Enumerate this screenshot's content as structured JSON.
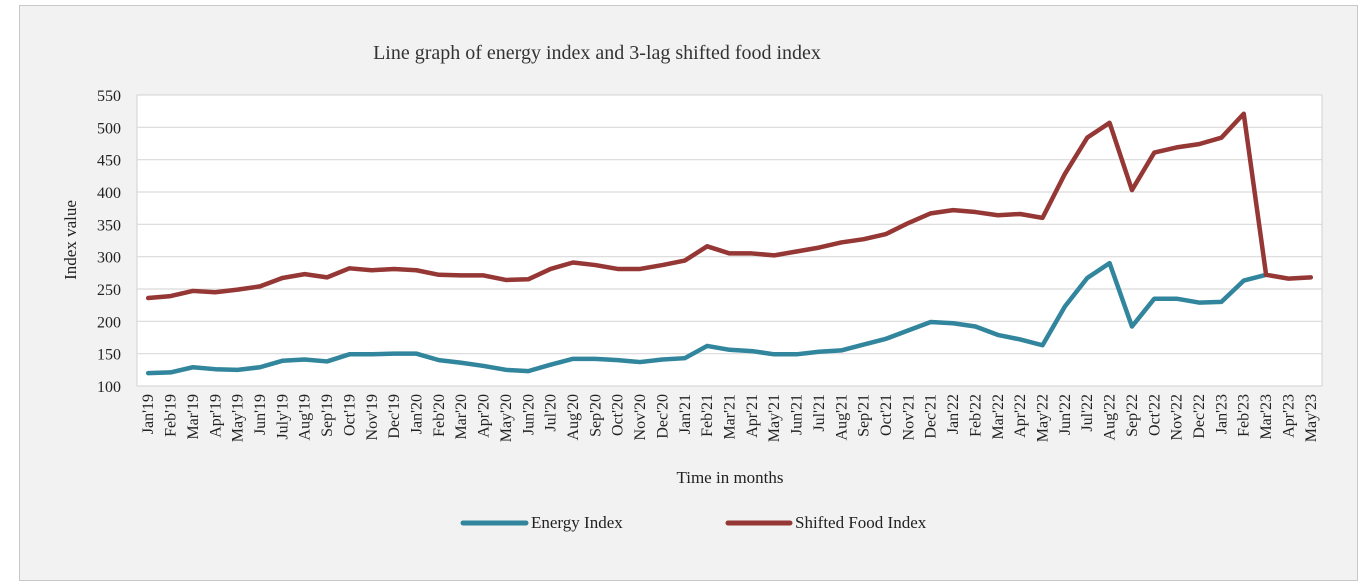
{
  "chart_data": {
    "type": "line",
    "title": "Line graph of energy index and 3-lag shifted food index",
    "xlabel": "Time in months",
    "ylabel": "Index value",
    "ylim": [
      100,
      550
    ],
    "yticks": [
      100,
      150,
      200,
      250,
      300,
      350,
      400,
      450,
      500,
      550
    ],
    "grid": true,
    "legend_position": "bottom",
    "categories": [
      "Jan'19",
      "Feb'19",
      "Mar'19",
      "Apr'19",
      "May'19",
      "Jun'19",
      "July'19",
      "Aug'19",
      "Sep'19",
      "Oct'19",
      "Nov'19",
      "Dec'19",
      "Jan'20",
      "Feb'20",
      "Mar'20",
      "Apr'20",
      "May'20",
      "Jun'20",
      "Jul'20",
      "Aug'20",
      "Sep'20",
      "Oct'20",
      "Nov'20",
      "Dec'20",
      "Jan'21",
      "Feb'21",
      "Mar'21",
      "Apr'21",
      "May'21",
      "Jun'21",
      "Jul'21",
      "Aug'21",
      "Sep'21",
      "Oct'21",
      "Nov'21",
      "Dec'21",
      "Jan'22",
      "Feb'22",
      "Mar'22",
      "Apr'22",
      "May'22",
      "Jun'22",
      "Jul'22",
      "Aug'22",
      "Sep'22",
      "Oct'22",
      "Nov'22",
      "Dec'22",
      "Jan'23",
      "Feb'23",
      "Mar'23",
      "Apr'23",
      "May'23"
    ],
    "series": [
      {
        "name": "Energy Index",
        "color": "#31859c",
        "values": [
          120,
          121,
          129,
          126,
          125,
          129,
          139,
          141,
          138,
          149,
          149,
          150,
          150,
          140,
          136,
          131,
          125,
          123,
          133,
          142,
          142,
          140,
          137,
          141,
          143,
          162,
          156,
          154,
          149,
          149,
          153,
          155,
          164,
          173,
          186,
          199,
          197,
          192,
          179,
          172,
          163,
          223,
          267,
          290,
          192,
          235,
          235,
          229,
          230,
          263,
          272,
          null,
          null
        ]
      },
      {
        "name": "Shifted Food Index",
        "color": "#953735",
        "values": [
          236,
          239,
          247,
          245,
          249,
          254,
          267,
          273,
          268,
          282,
          279,
          281,
          279,
          272,
          271,
          271,
          264,
          265,
          281,
          291,
          287,
          281,
          281,
          287,
          294,
          316,
          305,
          305,
          302,
          308,
          314,
          322,
          327,
          335,
          352,
          367,
          372,
          369,
          364,
          366,
          360,
          428,
          484,
          507,
          403,
          461,
          469,
          474,
          484,
          521,
          272,
          266,
          268
        ]
      }
    ]
  }
}
